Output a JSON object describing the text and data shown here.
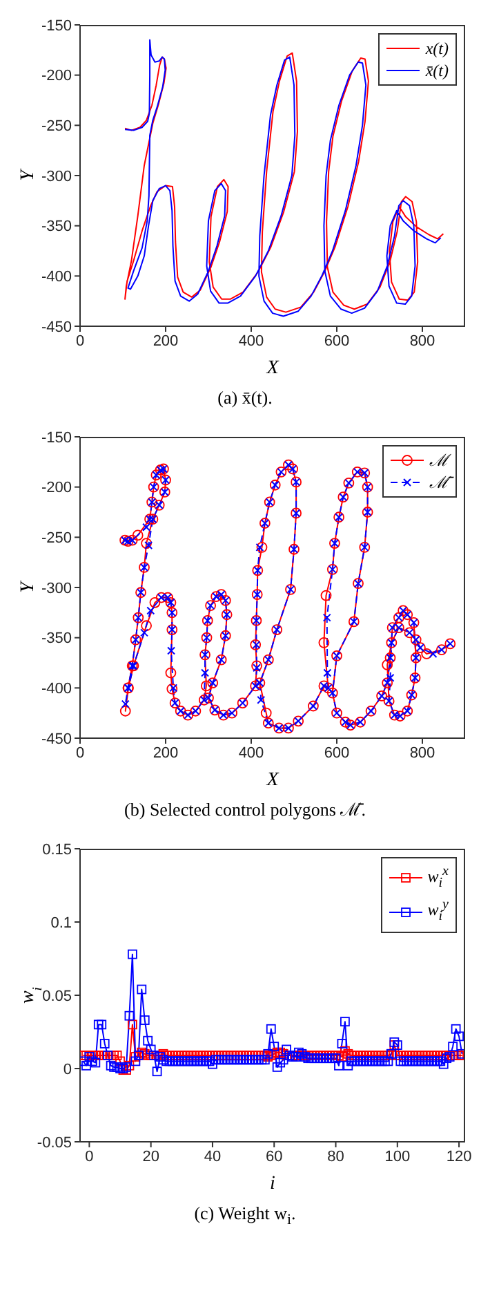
{
  "chart_data": [
    {
      "type": "line",
      "title": "(a) x̄(t).",
      "xlabel": "X",
      "ylabel": "Y",
      "xlim": [
        0,
        900
      ],
      "ylim": [
        -450,
        -150
      ],
      "xticks": [
        0,
        200,
        400,
        600,
        800
      ],
      "yticks": [
        -450,
        -400,
        -350,
        -300,
        -250,
        -200,
        -150
      ],
      "grid": false,
      "legend": "top right",
      "series": [
        {
          "name": "x(t)",
          "color": "#ff0000",
          "x": [
            105,
            120,
            140,
            155,
            168,
            178,
            186,
            192,
            197,
            201,
            196,
            184,
            170,
            150,
            135,
            120,
            108,
            105,
            110,
            125,
            145,
            165,
            180,
            200,
            216,
            221,
            223,
            228,
            241,
            261,
            281,
            306,
            326,
            344,
            346,
            336,
            321,
            306,
            302,
            311,
            331,
            351,
            381,
            416,
            446,
            476,
            501,
            508,
            506,
            496,
            484,
            466,
            451,
            436,
            426,
            424,
            436,
            456,
            481,
            516,
            546,
            571,
            596,
            626,
            651,
            666,
            674,
            666,
            656,
            636,
            611,
            591,
            581,
            576,
            578,
            591,
            616,
            641,
            671,
            701,
            724,
            741,
            751,
            761,
            776,
            786,
            789,
            781,
            766,
            746,
            728,
            723,
            731,
            746,
            761,
            786,
            816,
            836,
            849
          ],
          "values": [
            -253,
            -255,
            -252,
            -245,
            -230,
            -210,
            -190,
            -182,
            -184,
            -193,
            -208,
            -228,
            -248,
            -290,
            -340,
            -385,
            -410,
            -423,
            -405,
            -385,
            -355,
            -330,
            -316,
            -310,
            -311,
            -331,
            -366,
            -401,
            -416,
            -421,
            -414,
            -391,
            -366,
            -336,
            -311,
            -304,
            -311,
            -341,
            -386,
            -411,
            -423,
            -423,
            -416,
            -396,
            -371,
            -336,
            -296,
            -256,
            -206,
            -178,
            -181,
            -206,
            -236,
            -296,
            -356,
            -396,
            -421,
            -433,
            -436,
            -431,
            -416,
            -396,
            -371,
            -331,
            -286,
            -246,
            -206,
            -184,
            -183,
            -196,
            -226,
            -261,
            -296,
            -346,
            -391,
            -416,
            -429,
            -433,
            -428,
            -411,
            -386,
            -356,
            -326,
            -321,
            -326,
            -346,
            -386,
            -416,
            -424,
            -423,
            -406,
            -376,
            -346,
            -331,
            -341,
            -351,
            -359,
            -363,
            -358
          ]
        },
        {
          "name": "x̄(t)",
          "color": "#0000ff",
          "x": [
            105,
            125,
            145,
            158,
            162,
            163,
            163,
            166,
            175,
            185,
            192,
            197,
            199,
            193,
            180,
            170,
            163,
            161,
            157,
            145,
            125,
            112,
            118,
            135,
            150,
            160,
            170,
            185,
            200,
            210,
            215,
            217,
            222,
            235,
            255,
            275,
            300,
            320,
            338,
            340,
            330,
            315,
            300,
            296,
            305,
            325,
            345,
            375,
            410,
            440,
            470,
            495,
            502,
            500,
            490,
            478,
            460,
            445,
            430,
            420,
            418,
            430,
            450,
            475,
            510,
            540,
            565,
            590,
            620,
            645,
            660,
            668,
            660,
            650,
            630,
            605,
            585,
            575,
            570,
            572,
            585,
            610,
            635,
            665,
            695,
            718,
            735,
            745,
            755,
            770,
            780,
            783,
            775,
            760,
            740,
            722,
            717,
            725,
            740,
            755,
            780,
            810,
            830,
            843
          ],
          "values": [
            -254,
            -255,
            -252,
            -246,
            -238,
            -200,
            -165,
            -180,
            -187,
            -186,
            -182,
            -184,
            -195,
            -212,
            -232,
            -245,
            -260,
            -320,
            -345,
            -372,
            -395,
            -412,
            -413,
            -400,
            -380,
            -350,
            -325,
            -313,
            -310,
            -315,
            -335,
            -370,
            -405,
            -420,
            -425,
            -418,
            -395,
            -370,
            -340,
            -315,
            -308,
            -315,
            -345,
            -390,
            -415,
            -427,
            -427,
            -420,
            -400,
            -375,
            -340,
            -300,
            -260,
            -210,
            -182,
            -185,
            -210,
            -240,
            -300,
            -360,
            -400,
            -425,
            -437,
            -440,
            -435,
            -420,
            -400,
            -375,
            -335,
            -290,
            -250,
            -210,
            -188,
            -187,
            -200,
            -230,
            -265,
            -300,
            -350,
            -395,
            -420,
            -433,
            -437,
            -432,
            -415,
            -390,
            -360,
            -330,
            -325,
            -330,
            -350,
            -390,
            -420,
            -428,
            -427,
            -410,
            -380,
            -350,
            -335,
            -345,
            -355,
            -363,
            -367,
            -362
          ]
        }
      ]
    },
    {
      "type": "line",
      "title": "(b) Selected control polygons ℳ̄.",
      "xlabel": "X",
      "ylabel": "Y",
      "xlim": [
        0,
        900
      ],
      "ylim": [
        -450,
        -150
      ],
      "xticks": [
        0,
        200,
        400,
        600,
        800
      ],
      "yticks": [
        -450,
        -400,
        -350,
        -300,
        -250,
        -200,
        -150
      ],
      "grid": false,
      "legend": "top right",
      "series": [
        {
          "name": "ℳ",
          "color": "#ff0000",
          "marker": "circle",
          "line_style": "solid",
          "x": [
            105,
            112,
            122,
            135,
            163,
            168,
            172,
            178,
            188,
            195,
            200,
            198,
            185,
            170,
            155,
            150,
            142,
            136,
            130,
            122,
            112,
            106,
            113,
            125,
            155,
            175,
            190,
            205,
            212,
            215,
            215,
            212,
            215,
            222,
            235,
            252,
            270,
            290,
            295,
            292,
            296,
            298,
            305,
            318,
            330,
            340,
            343,
            340,
            330,
            310,
            300,
            315,
            335,
            355,
            380,
            410,
            413,
            410,
            412,
            414,
            415,
            425,
            432,
            443,
            456,
            470,
            487,
            497,
            505,
            505,
            500,
            492,
            460,
            440,
            420,
            435,
            440,
            465,
            487,
            510,
            545,
            570,
            580,
            570,
            575,
            590,
            595,
            605,
            615,
            628,
            648,
            665,
            672,
            672,
            665,
            650,
            640,
            600,
            590,
            600,
            620,
            632,
            655,
            680,
            705,
            718,
            725,
            730,
            745,
            755,
            765,
            780,
            785,
            783,
            775,
            765,
            748,
            735,
            722,
            718,
            728,
            745,
            770,
            785,
            795,
            810,
            845,
            865
          ],
          "values": [
            -253,
            -254,
            -253,
            -248,
            -232,
            -215,
            -200,
            -188,
            -183,
            -182,
            -193,
            -205,
            -218,
            -232,
            -256,
            -280,
            -305,
            -330,
            -352,
            -378,
            -400,
            -423,
            -400,
            -378,
            -338,
            -315,
            -310,
            -310,
            -315,
            -325,
            -342,
            -385,
            -401,
            -415,
            -423,
            -427,
            -423,
            -412,
            -398,
            -367,
            -350,
            -333,
            -318,
            -309,
            -307,
            -313,
            -327,
            -348,
            -372,
            -395,
            -410,
            -422,
            -427,
            -425,
            -415,
            -398,
            -378,
            -357,
            -333,
            -307,
            -283,
            -260,
            -236,
            -215,
            -198,
            -185,
            -178,
            -182,
            -195,
            -226,
            -262,
            -302,
            -342,
            -372,
            -395,
            -425,
            -435,
            -440,
            -440,
            -433,
            -418,
            -398,
            -400,
            -355,
            -308,
            -282,
            -256,
            -230,
            -210,
            -196,
            -185,
            -186,
            -200,
            -225,
            -260,
            -296,
            -334,
            -368,
            -405,
            -425,
            -434,
            -437,
            -434,
            -423,
            -408,
            -395,
            -370,
            -340,
            -330,
            -323,
            -327,
            -335,
            -370,
            -390,
            -407,
            -423,
            -428,
            -427,
            -413,
            -377,
            -355,
            -340,
            -345,
            -352,
            -360,
            -366,
            -362,
            -356
          ]
        },
        {
          "name": "ℳ̄",
          "color": "#0000ff",
          "marker": "cross",
          "line_style": "dashed",
          "x": [
            105,
            112,
            122,
            155,
            163,
            168,
            172,
            178,
            188,
            195,
            200,
            198,
            185,
            170,
            160,
            150,
            142,
            136,
            130,
            122,
            112,
            106,
            113,
            125,
            150,
            165,
            190,
            205,
            212,
            215,
            215,
            213,
            218,
            222,
            235,
            252,
            270,
            290,
            292,
            292,
            296,
            298,
            305,
            318,
            330,
            340,
            343,
            340,
            330,
            310,
            300,
            315,
            335,
            355,
            380,
            410,
            413,
            412,
            412,
            414,
            415,
            420,
            432,
            443,
            456,
            470,
            487,
            497,
            505,
            505,
            500,
            492,
            460,
            440,
            420,
            423,
            440,
            465,
            487,
            510,
            545,
            570,
            580,
            578,
            577,
            590,
            595,
            605,
            615,
            628,
            648,
            665,
            672,
            672,
            665,
            650,
            640,
            600,
            590,
            600,
            620,
            632,
            655,
            680,
            705,
            718,
            725,
            730,
            745,
            755,
            765,
            780,
            785,
            783,
            775,
            765,
            748,
            735,
            722,
            725,
            728,
            745,
            770,
            785,
            795,
            825,
            845,
            865
          ],
          "values": [
            -253,
            -254,
            -253,
            -240,
            -232,
            -215,
            -200,
            -188,
            -183,
            -182,
            -193,
            -205,
            -218,
            -232,
            -258,
            -280,
            -305,
            -330,
            -352,
            -378,
            -400,
            -416,
            -400,
            -378,
            -345,
            -323,
            -310,
            -310,
            -315,
            -325,
            -342,
            -363,
            -400,
            -415,
            -423,
            -427,
            -423,
            -412,
            -385,
            -367,
            -350,
            -333,
            -318,
            -309,
            -307,
            -313,
            -327,
            -348,
            -372,
            -395,
            -410,
            -422,
            -427,
            -425,
            -415,
            -398,
            -380,
            -357,
            -333,
            -307,
            -283,
            -260,
            -236,
            -215,
            -198,
            -185,
            -178,
            -182,
            -195,
            -226,
            -262,
            -302,
            -342,
            -372,
            -395,
            -412,
            -435,
            -440,
            -440,
            -433,
            -418,
            -398,
            -400,
            -385,
            -330,
            -282,
            -256,
            -230,
            -210,
            -196,
            -185,
            -186,
            -200,
            -225,
            -260,
            -296,
            -334,
            -368,
            -405,
            -425,
            -434,
            -437,
            -434,
            -423,
            -408,
            -395,
            -370,
            -340,
            -330,
            -323,
            -327,
            -335,
            -370,
            -390,
            -407,
            -423,
            -428,
            -427,
            -413,
            -390,
            -355,
            -340,
            -345,
            -352,
            -360,
            -366,
            -362,
            -356
          ]
        }
      ]
    },
    {
      "type": "line",
      "title": "(c) Weight w$_{i}$.",
      "xlabel": "i",
      "ylabel": "w$_{i}$",
      "xlim": [
        -3,
        122
      ],
      "ylim": [
        -0.05,
        0.15
      ],
      "xticks": [
        0,
        20,
        40,
        60,
        80,
        100,
        120
      ],
      "yticks": [
        -0.05,
        0,
        0.05,
        0.1,
        0.15
      ],
      "grid": false,
      "legend": "top right",
      "marker": "square",
      "x": [
        -2,
        -1,
        0,
        1,
        2,
        3,
        4,
        5,
        6,
        7,
        8,
        9,
        10,
        11,
        12,
        13,
        14,
        15,
        16,
        17,
        18,
        19,
        20,
        21,
        22,
        23,
        24,
        25,
        26,
        27,
        28,
        29,
        30,
        31,
        32,
        33,
        34,
        35,
        36,
        37,
        38,
        39,
        40,
        41,
        42,
        43,
        44,
        45,
        46,
        47,
        48,
        49,
        50,
        51,
        52,
        53,
        54,
        55,
        56,
        57,
        58,
        59,
        60,
        61,
        62,
        63,
        64,
        65,
        66,
        67,
        68,
        69,
        70,
        71,
        72,
        73,
        74,
        75,
        76,
        77,
        78,
        79,
        80,
        81,
        82,
        83,
        84,
        85,
        86,
        87,
        88,
        89,
        90,
        91,
        92,
        93,
        94,
        95,
        96,
        97,
        98,
        99,
        100,
        101,
        102,
        103,
        104,
        105,
        106,
        107,
        108,
        109,
        110,
        111,
        112,
        113,
        114,
        115,
        116,
        117,
        118,
        119,
        120,
        121
      ],
      "series": [
        {
          "name": "w$_{i}$$^{x}$",
          "color": "#ff0000",
          "values": [
            0.009,
            0.009,
            0.009,
            0.009,
            0.009,
            0.009,
            0.009,
            0.009,
            0.009,
            0.009,
            0.009,
            0.009,
            0.005,
            -0.001,
            -0.001,
            0.002,
            0.03,
            0.008,
            0.009,
            0.011,
            0.01,
            0.009,
            0.009,
            0.009,
            0.009,
            0.009,
            0.01,
            0.009,
            0.009,
            0.009,
            0.009,
            0.009,
            0.009,
            0.009,
            0.009,
            0.009,
            0.009,
            0.009,
            0.009,
            0.009,
            0.009,
            0.009,
            0.009,
            0.009,
            0.009,
            0.009,
            0.009,
            0.009,
            0.009,
            0.009,
            0.009,
            0.009,
            0.009,
            0.009,
            0.009,
            0.009,
            0.009,
            0.009,
            0.009,
            0.009,
            0.008,
            0.009,
            0.01,
            0.011,
            0.011,
            0.01,
            0.009,
            0.009,
            0.009,
            0.009,
            0.009,
            0.009,
            0.009,
            0.009,
            0.009,
            0.009,
            0.009,
            0.009,
            0.009,
            0.009,
            0.009,
            0.009,
            0.009,
            0.009,
            0.008,
            0.012,
            0.01,
            0.009,
            0.009,
            0.009,
            0.009,
            0.009,
            0.009,
            0.009,
            0.009,
            0.009,
            0.009,
            0.009,
            0.009,
            0.009,
            0.01,
            0.016,
            0.009,
            0.009,
            0.009,
            0.009,
            0.009,
            0.009,
            0.009,
            0.009,
            0.009,
            0.009,
            0.009,
            0.009,
            0.009,
            0.009,
            0.009,
            0.009,
            0.009,
            0.009,
            0.009,
            0.009,
            0.009,
            0.009
          ]
        },
        {
          "name": "w$_{i}$$^{y}$",
          "color": "#0000ff",
          "values": [
            0.005,
            0.002,
            0.008,
            0.005,
            0.004,
            0.03,
            0.03,
            0.017,
            0.009,
            0.002,
            0.001,
            0.001,
            0,
            0,
            0.001,
            0.036,
            0.078,
            0.005,
            0.009,
            0.054,
            0.033,
            0.019,
            0.013,
            0.009,
            -0.002,
            0.008,
            0.006,
            0.005,
            0.005,
            0.005,
            0.005,
            0.005,
            0.005,
            0.005,
            0.005,
            0.005,
            0.005,
            0.005,
            0.005,
            0.005,
            0.005,
            0.005,
            0.003,
            0.006,
            0.006,
            0.006,
            0.006,
            0.006,
            0.006,
            0.006,
            0.006,
            0.006,
            0.006,
            0.006,
            0.006,
            0.006,
            0.006,
            0.006,
            0.006,
            0.006,
            0.01,
            0.027,
            0.015,
            0.001,
            0.004,
            0.006,
            0.013,
            0.009,
            0.008,
            0.008,
            0.011,
            0.01,
            0.008,
            0.007,
            0.007,
            0.007,
            0.007,
            0.007,
            0.007,
            0.007,
            0.007,
            0.007,
            0.007,
            0.002,
            0.017,
            0.032,
            0.002,
            0.005,
            0.005,
            0.005,
            0.005,
            0.005,
            0.005,
            0.005,
            0.005,
            0.005,
            0.005,
            0.005,
            0.005,
            0.005,
            0.01,
            0.018,
            0.016,
            0.005,
            0.005,
            0.005,
            0.005,
            0.005,
            0.005,
            0.005,
            0.005,
            0.005,
            0.005,
            0.005,
            0.005,
            0.005,
            0.005,
            0.003,
            0.007,
            0.008,
            0.015,
            0.027,
            0.022,
            0.01
          ]
        }
      ]
    }
  ]
}
